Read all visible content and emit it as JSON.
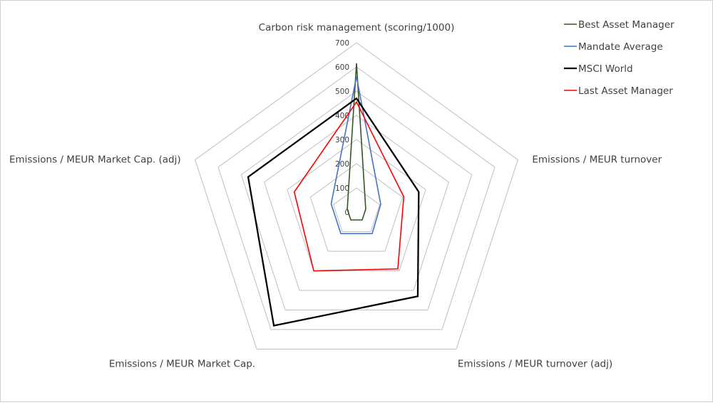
{
  "chart_data": {
    "type": "radar",
    "axes": [
      "Carbon risk management (scoring/1000)",
      "Emissions / MEUR turnover",
      "Emissions / MEUR turnover (adj)",
      "Emissions / MEUR Market Cap.",
      "Emissions / MEUR Market Cap. (adj)"
    ],
    "rlim": [
      0,
      700
    ],
    "ticks": [
      0,
      100,
      200,
      300,
      400,
      500,
      600,
      700
    ],
    "grid": true,
    "legend_position": "top-right",
    "series": [
      {
        "name": "Best Asset Manager",
        "color": "#375623",
        "values": [
          615,
          40,
          40,
          40,
          40
        ]
      },
      {
        "name": "Mandate Average",
        "color": "#4472c4",
        "values": [
          560,
          105,
          110,
          110,
          110
        ]
      },
      {
        "name": "MSCI World",
        "color": "#000000",
        "values": [
          470,
          270,
          430,
          580,
          470
        ]
      },
      {
        "name": "Last Asset Manager",
        "color": "#ff0000",
        "values": [
          455,
          205,
          290,
          300,
          270
        ]
      }
    ]
  }
}
